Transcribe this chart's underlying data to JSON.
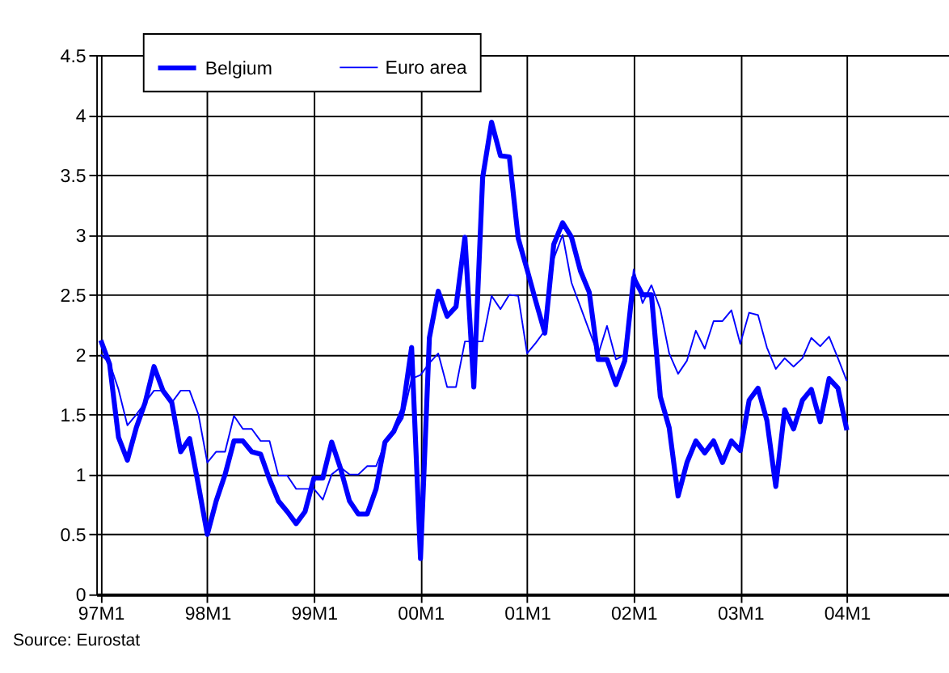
{
  "chart_data": {
    "type": "line",
    "categories": [
      "97M1",
      null,
      null,
      null,
      null,
      null,
      null,
      null,
      null,
      null,
      null,
      null,
      "98M1",
      null,
      null,
      null,
      null,
      null,
      null,
      null,
      null,
      null,
      null,
      null,
      "99M1",
      null,
      null,
      null,
      null,
      null,
      null,
      null,
      null,
      null,
      null,
      null,
      "00M1",
      null,
      null,
      null,
      null,
      null,
      null,
      null,
      null,
      null,
      null,
      null,
      "01M1",
      null,
      null,
      null,
      null,
      null,
      null,
      null,
      null,
      null,
      null,
      null,
      "02M1",
      null,
      null,
      null,
      null,
      null,
      null,
      null,
      null,
      null,
      null,
      null,
      "03M1",
      null,
      null,
      null,
      null,
      null,
      null,
      null,
      null,
      null,
      null,
      null,
      "04M1",
      null,
      null,
      null,
      null,
      null,
      null,
      null,
      null,
      null,
      null,
      null
    ],
    "series": [
      {
        "name": "Belgium",
        "color": "#0000ff",
        "values": [
          2.12,
          1.92,
          1.31,
          1.12,
          1.39,
          1.6,
          1.9,
          1.7,
          1.6,
          1.19,
          1.3,
          0.91,
          0.5,
          0.78,
          1.0,
          1.28,
          1.28,
          1.19,
          1.17,
          0.96,
          0.78,
          0.69,
          0.59,
          0.69,
          0.97,
          0.97,
          1.27,
          1.05,
          0.78,
          0.67,
          0.67,
          0.88,
          1.27,
          1.36,
          1.54,
          2.06,
          0.3,
          2.14,
          2.53,
          2.32,
          2.4,
          2.98,
          1.73,
          3.48,
          3.94,
          3.66,
          3.65,
          2.97,
          2.71,
          2.44,
          2.18,
          2.92,
          3.1,
          2.98,
          2.7,
          2.52,
          1.96,
          1.96,
          1.75,
          1.95,
          2.64,
          2.5,
          2.5,
          1.65,
          1.39,
          0.82,
          1.1,
          1.28,
          1.18,
          1.28,
          1.1,
          1.28,
          1.2,
          1.62,
          1.72,
          1.45,
          0.9,
          1.54,
          1.38,
          1.62,
          1.71,
          1.44,
          1.8,
          1.72,
          1.37,
          null,
          null,
          null,
          null,
          null,
          null,
          null,
          null,
          null,
          null,
          null
        ]
      },
      {
        "name": "Euro area",
        "color": "#0000ff",
        "values": [
          2.0,
          1.93,
          1.71,
          1.41,
          1.5,
          1.6,
          1.7,
          1.7,
          1.6,
          1.7,
          1.7,
          1.5,
          1.1,
          1.19,
          1.19,
          1.49,
          1.38,
          1.38,
          1.28,
          1.28,
          0.99,
          0.99,
          0.88,
          0.88,
          0.88,
          0.79,
          1.0,
          1.06,
          1.0,
          1.0,
          1.07,
          1.07,
          1.26,
          1.35,
          1.47,
          1.8,
          1.83,
          1.93,
          2.01,
          1.73,
          1.73,
          2.11,
          2.11,
          2.11,
          2.49,
          2.38,
          2.5,
          2.49,
          2.01,
          2.1,
          2.2,
          2.8,
          3.0,
          2.6,
          2.4,
          2.2,
          2.0,
          2.24,
          1.96,
          2.0,
          2.71,
          2.43,
          2.58,
          2.38,
          2.01,
          1.84,
          1.95,
          2.2,
          2.05,
          2.28,
          2.28,
          2.37,
          2.09,
          2.35,
          2.33,
          2.06,
          1.88,
          1.97,
          1.9,
          1.97,
          2.14,
          2.07,
          2.15,
          1.97,
          1.78,
          null,
          null,
          null,
          null,
          null,
          null,
          null,
          null,
          null,
          null,
          null
        ]
      }
    ],
    "ylim": [
      0,
      4.5
    ],
    "yticks": [
      0,
      0.5,
      1,
      1.5,
      2,
      2.5,
      3,
      3.5,
      4,
      4.5
    ],
    "grid": true,
    "legend": "top",
    "marker": "none",
    "line_style": "solid",
    "annotations": [
      "Source: Eurostat"
    ]
  }
}
